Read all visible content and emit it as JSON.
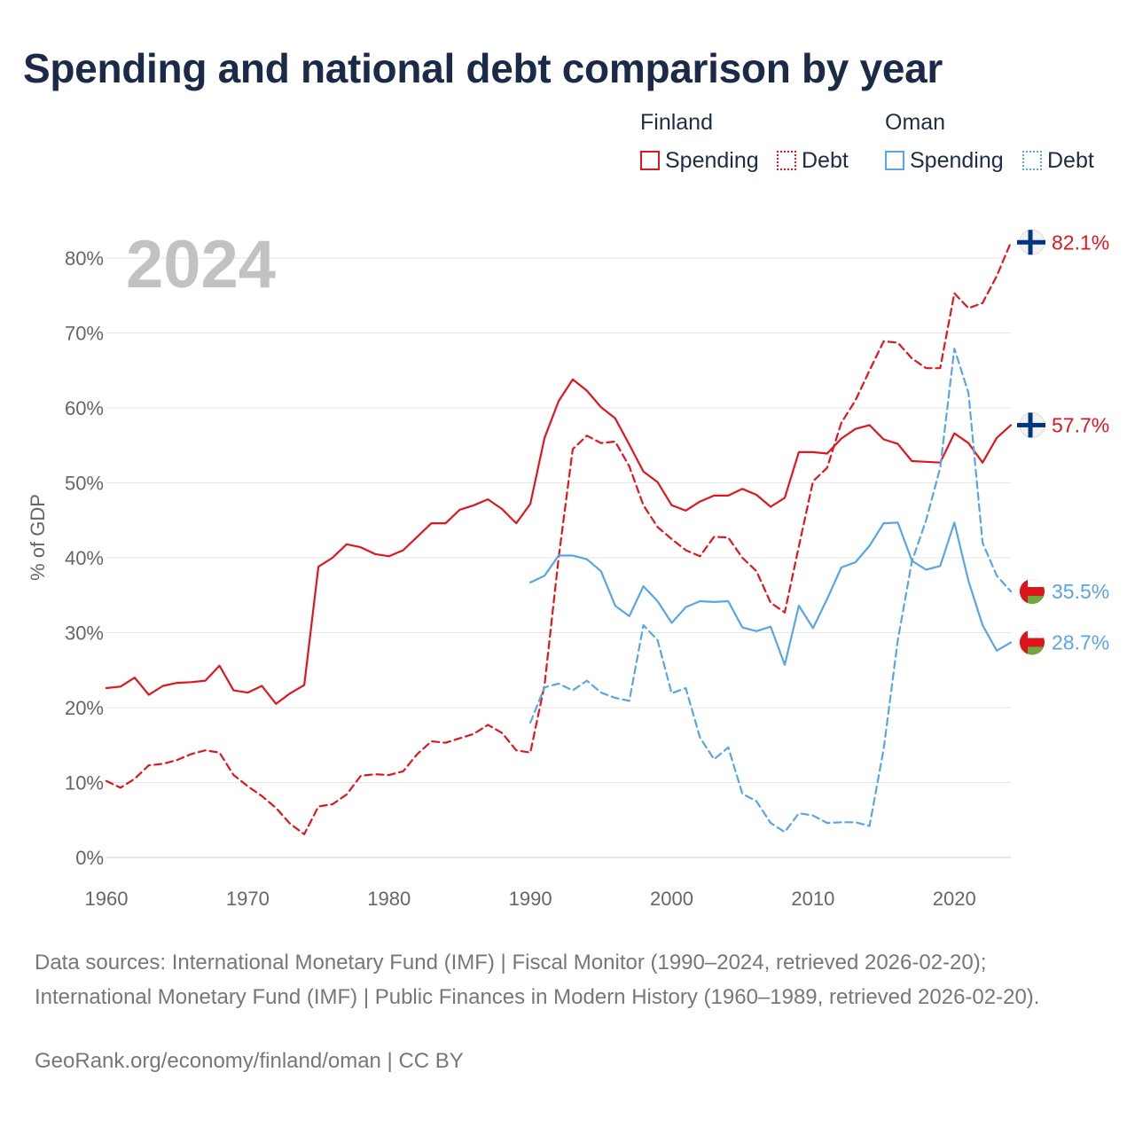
{
  "title": "Spending and national debt comparison by year",
  "year_label": "2024",
  "legend": {
    "countries": [
      {
        "name": "Finland",
        "spending_label": "Spending",
        "debt_label": "Debt",
        "color": "#e0161e"
      },
      {
        "name": "Oman",
        "spending_label": "Spending",
        "debt_label": "Debt",
        "color": "#5aa5e6"
      }
    ]
  },
  "footer": {
    "sources": "Data sources: International Monetary Fund (IMF) | Fiscal Monitor (1990–2024, retrieved 2026-02-20); International Monetary Fund (IMF) | Public Finances in Modern History (1960–1989, retrieved 2026-02-20).",
    "credit": "GeoRank.org/economy/finland/oman | CC BY"
  },
  "chart_data": {
    "type": "line",
    "title": "Spending and national debt comparison by year",
    "xlabel": "",
    "ylabel": "% of GDP",
    "xlim": [
      1960,
      2024
    ],
    "ylim": [
      0,
      80
    ],
    "x_ticks": [
      1960,
      1970,
      1980,
      1990,
      2000,
      2010,
      2020
    ],
    "y_ticks": [
      0,
      10,
      20,
      30,
      40,
      50,
      60,
      70,
      80
    ],
    "y_tick_labels": [
      "0%",
      "10%",
      "20%",
      "30%",
      "40%",
      "50%",
      "60%",
      "70%",
      "80%"
    ],
    "grid": true,
    "series": [
      {
        "name": "Finland Spending",
        "country": "Finland",
        "style": "solid",
        "color": "#e0161e",
        "start": 1960,
        "end_label": "57.7%",
        "values": [
          22.6,
          22.8,
          24.0,
          21.7,
          22.9,
          23.3,
          23.4,
          23.6,
          25.6,
          22.3,
          22.0,
          22.9,
          20.5,
          21.9,
          23.0,
          38.8,
          40.0,
          41.8,
          41.4,
          40.5,
          40.2,
          41.0,
          42.8,
          44.6,
          44.6,
          46.4,
          47.0,
          47.8,
          46.5,
          44.6,
          47.2,
          56.0,
          60.9,
          63.8,
          62.3,
          60.1,
          58.6,
          55.1,
          51.5,
          50.1,
          47.0,
          46.3,
          47.5,
          48.3,
          48.3,
          49.2,
          48.4,
          46.8,
          48.0,
          54.1,
          54.1,
          53.9,
          55.9,
          57.2,
          57.7,
          55.8,
          55.2,
          52.9,
          52.8,
          52.7,
          56.6,
          55.3,
          52.7,
          56.0,
          57.7
        ]
      },
      {
        "name": "Finland Debt",
        "country": "Finland",
        "style": "dashed",
        "color": "#e0161e",
        "start": 1960,
        "end_label": "82.1%",
        "values": [
          10.2,
          9.3,
          10.5,
          12.3,
          12.5,
          13.0,
          13.8,
          14.3,
          14.0,
          11.0,
          9.5,
          8.2,
          6.6,
          4.5,
          3.1,
          6.8,
          7.1,
          8.4,
          10.9,
          11.1,
          11.0,
          11.5,
          13.8,
          15.5,
          15.3,
          15.9,
          16.5,
          17.7,
          16.6,
          14.3,
          14.0,
          23.0,
          40.0,
          54.5,
          56.3,
          55.3,
          55.5,
          52.2,
          47.0,
          44.1,
          42.5,
          41.0,
          40.2,
          42.8,
          42.7,
          40.0,
          38.2,
          34.0,
          32.7,
          41.5,
          50.2,
          52.0,
          58.0,
          61.0,
          65.0,
          68.9,
          68.7,
          66.6,
          65.3,
          65.3,
          75.3,
          73.3,
          74.0,
          77.6,
          82.1
        ]
      },
      {
        "name": "Oman Spending",
        "country": "Oman",
        "style": "solid",
        "color": "#5aa5e6",
        "start": 1990,
        "end_label": "28.7%",
        "values": [
          36.7,
          37.6,
          40.3,
          40.3,
          39.8,
          38.2,
          33.6,
          32.2,
          36.2,
          34.2,
          31.3,
          33.4,
          34.2,
          34.1,
          34.2,
          30.7,
          30.2,
          30.8,
          25.7,
          33.6,
          30.6,
          34.5,
          38.7,
          39.4,
          41.6,
          44.6,
          44.7,
          39.6,
          38.4,
          38.9,
          44.7,
          36.9,
          31.0,
          27.6,
          28.7
        ]
      },
      {
        "name": "Oman Debt",
        "country": "Oman",
        "style": "dashed",
        "color": "#5aa5e6",
        "start": 1990,
        "end_label": "35.5%",
        "values": [
          18.0,
          22.7,
          23.2,
          22.3,
          23.6,
          22.0,
          21.3,
          20.9,
          31.0,
          29.0,
          21.9,
          22.6,
          16.0,
          13.1,
          14.7,
          8.5,
          7.5,
          4.6,
          3.4,
          5.9,
          5.6,
          4.6,
          4.7,
          4.7,
          4.2,
          14.5,
          29.0,
          39.5,
          45.0,
          52.0,
          67.9,
          62.0,
          42.0,
          37.6,
          35.5
        ]
      }
    ]
  }
}
